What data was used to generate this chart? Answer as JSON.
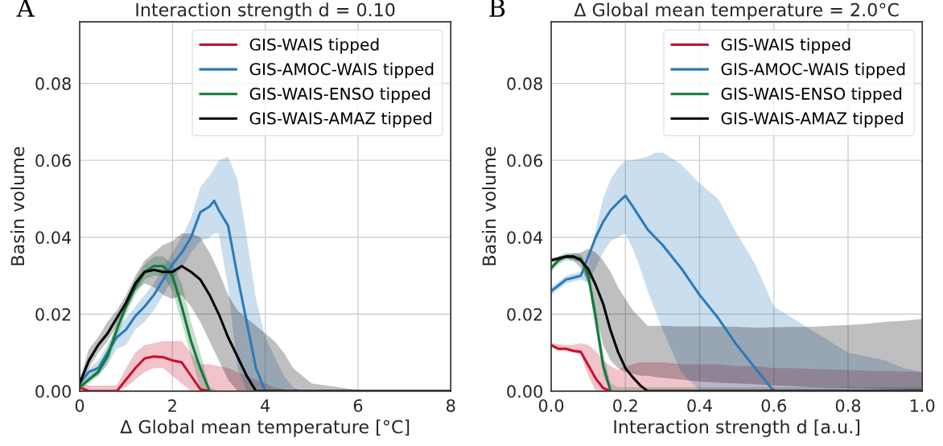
{
  "chart_data": [
    {
      "type": "line",
      "title": "Interaction strength d = 0.10",
      "xlabel": "Δ Global mean temperature [°C]",
      "ylabel": "Basin volume",
      "annotations": [
        "A"
      ],
      "x": [
        0,
        0.2,
        0.4,
        0.6,
        0.8,
        1.0,
        1.2,
        1.4,
        1.6,
        1.8,
        2.0,
        2.2,
        2.4,
        2.6,
        2.8,
        3.0,
        3.2,
        3.4,
        3.6,
        3.8,
        4.0,
        4.2,
        4.4,
        4.6,
        4.8,
        5.0,
        6,
        8
      ],
      "xlim": [
        0,
        8
      ],
      "xticks": [
        0,
        2,
        4,
        6,
        8
      ],
      "ylim": [
        0,
        0.096
      ],
      "yticks": [
        {
          "value": 0,
          "label": "0.00"
        },
        {
          "value": 0.02,
          "label": "0.02"
        },
        {
          "value": 0.04,
          "label": "0.04"
        },
        {
          "value": 0.06,
          "label": "0.06"
        },
        {
          "value": 0.08,
          "label": "0.08"
        }
      ],
      "grid": true,
      "legend": "top right",
      "series": [
        {
          "name": "GIS-WAIS tipped",
          "color": "#c8102e",
          "values": [
            0.001,
            0,
            0,
            0,
            0,
            0.003,
            0.006,
            0.0085,
            0.009,
            0.0088,
            0.008,
            0.0075,
            0.004,
            0.0005,
            0,
            null,
            null,
            null,
            null,
            null,
            null,
            null,
            null,
            null,
            null,
            null,
            null,
            null
          ],
          "upper": [
            0.002,
            0.0015,
            0.0015,
            0.0015,
            0.0015,
            0.006,
            0.01,
            0.012,
            0.0125,
            0.013,
            0.013,
            0.013,
            0.01,
            0.007,
            0.007,
            0.0065,
            0.006,
            0.005,
            0.004,
            0.003,
            0.002,
            0.001,
            0.0005,
            0,
            0,
            0,
            0,
            0
          ],
          "lower": [
            0,
            0,
            0,
            0,
            0,
            0.001,
            0.003,
            0.005,
            0.006,
            0.006,
            0.004,
            0.002,
            0,
            0,
            0,
            0,
            0,
            0,
            0,
            0,
            0,
            0,
            0,
            0,
            0,
            0,
            0,
            0
          ]
        },
        {
          "name": "GIS-AMOC-WAIS tipped",
          "color": "#2b7bba",
          "x": [
            0,
            0.2,
            0.4,
            0.6,
            0.8,
            1.0,
            1.2,
            1.4,
            1.6,
            1.8,
            2.0,
            2.2,
            2.4,
            2.6,
            2.8,
            2.9,
            3.0,
            3.2,
            3.4,
            3.6,
            3.8,
            4.0,
            4.2,
            4.4,
            4.6,
            4.8,
            5.0,
            6,
            8
          ],
          "values": [
            0.002,
            0.005,
            0.006,
            0.01,
            0.014,
            0.016,
            0.0195,
            0.022,
            0.025,
            0.029,
            0.033,
            0.036,
            0.04,
            0.0465,
            0.048,
            0.0495,
            0.047,
            0.043,
            0.03,
            0.018,
            0.006,
            0,
            null,
            null,
            null,
            null,
            null,
            null,
            null
          ],
          "upper": [
            0.003,
            0.006,
            0.008,
            0.012,
            0.016,
            0.019,
            0.022,
            0.025,
            0.028,
            0.032,
            0.036,
            0.04,
            0.045,
            0.053,
            0.056,
            0.058,
            0.06,
            0.061,
            0.055,
            0.04,
            0.024,
            0.014,
            0.009,
            0.004,
            0.001,
            0,
            0,
            0,
            0
          ],
          "lower": [
            0.001,
            0.003,
            0.004,
            0.007,
            0.011,
            0.012,
            0.016,
            0.018,
            0.021,
            0.025,
            0.029,
            0.032,
            0.036,
            0.039,
            0.04,
            0.041,
            0.041,
            0.027,
            0.006,
            0,
            0,
            0,
            0,
            0,
            0,
            0,
            0,
            0,
            0
          ]
        },
        {
          "name": "GIS-WAIS-ENSO tipped",
          "color": "#137a3a",
          "values": [
            0.001,
            0.003,
            0.005,
            0.009,
            0.016,
            0.022,
            0.027,
            0.031,
            0.0325,
            0.0325,
            0.03,
            0.022,
            0.013,
            0.006,
            0,
            null,
            null,
            null,
            null,
            null,
            null,
            null,
            null,
            null,
            null,
            null,
            null,
            null
          ],
          "upper": [
            0.002,
            0.004,
            0.006,
            0.011,
            0.018,
            0.024,
            0.029,
            0.033,
            0.035,
            0.035,
            0.033,
            0.028,
            0.018,
            0.01,
            0.001,
            0,
            0,
            0,
            0,
            0,
            0,
            0,
            0,
            0,
            0,
            0,
            0,
            0
          ],
          "lower": [
            0,
            0.002,
            0.004,
            0.007,
            0.014,
            0.02,
            0.025,
            0.029,
            0.03,
            0.03,
            0.026,
            0.018,
            0.009,
            0.001,
            0,
            0,
            0,
            0,
            0,
            0,
            0,
            0,
            0,
            0,
            0,
            0,
            0,
            0
          ]
        },
        {
          "name": "GIS-WAIS-AMAZ tipped",
          "color": "#000000",
          "values": [
            0.002,
            0.008,
            0.012,
            0.015,
            0.019,
            0.023,
            0.028,
            0.031,
            0.0315,
            0.031,
            0.031,
            0.0325,
            0.031,
            0.029,
            0.025,
            0.02,
            0.014,
            0.009,
            0.004,
            0,
            0,
            0,
            0,
            0,
            0,
            0,
            0,
            0
          ],
          "upper": [
            0.003,
            0.011,
            0.014,
            0.018,
            0.021,
            0.025,
            0.03,
            0.034,
            0.036,
            0.038,
            0.039,
            0.041,
            0.041,
            0.04,
            0.036,
            0.031,
            0.025,
            0.021,
            0.019,
            0.017,
            0.015,
            0.013,
            0.01,
            0.006,
            0.004,
            0.002,
            0.0003,
            0
          ],
          "lower": [
            0.001,
            0.006,
            0.01,
            0.013,
            0.017,
            0.021,
            0.026,
            0.028,
            0.027,
            0.025,
            0.024,
            0.025,
            0.022,
            0.018,
            0.013,
            0.008,
            0.003,
            0,
            0,
            0,
            0,
            0,
            0,
            0,
            0,
            0,
            0,
            0
          ]
        }
      ]
    },
    {
      "type": "line",
      "title": "Δ Global mean temperature = 2.0°C",
      "xlabel": "Interaction strength d [a.u.]",
      "ylabel": "Basin volume",
      "annotations": [
        "B"
      ],
      "x": [
        0,
        0.02,
        0.04,
        0.06,
        0.08,
        0.1,
        0.12,
        0.14,
        0.16,
        0.18,
        0.2,
        0.22,
        0.24,
        0.26,
        0.28,
        0.3,
        0.35,
        0.4,
        0.45,
        0.5,
        0.55,
        0.6,
        0.65,
        0.7,
        0.75,
        0.8,
        0.85,
        0.9,
        0.95,
        1.0
      ],
      "xlim": [
        0,
        1
      ],
      "xticks": [
        {
          "value": 0,
          "label": "0.0"
        },
        {
          "value": 0.2,
          "label": "0.2"
        },
        {
          "value": 0.4,
          "label": "0.4"
        },
        {
          "value": 0.6,
          "label": "0.6"
        },
        {
          "value": 0.8,
          "label": "0.8"
        },
        {
          "value": 1.0,
          "label": "1.0"
        }
      ],
      "ylim": [
        0,
        0.096
      ],
      "yticks": [
        {
          "value": 0,
          "label": "0.00"
        },
        {
          "value": 0.02,
          "label": "0.02"
        },
        {
          "value": 0.04,
          "label": "0.04"
        },
        {
          "value": 0.06,
          "label": "0.06"
        },
        {
          "value": 0.08,
          "label": "0.08"
        }
      ],
      "grid": true,
      "legend": "top right",
      "series": [
        {
          "name": "GIS-WAIS tipped",
          "color": "#c8102e",
          "values": [
            0.012,
            0.011,
            0.011,
            0.0105,
            0.0102,
            0.0067,
            0.0033,
            0.0008,
            0,
            null,
            null,
            null,
            null,
            null,
            null,
            null,
            null,
            null,
            null,
            null,
            null,
            null,
            null,
            null,
            null,
            null,
            null,
            null,
            null,
            null
          ],
          "upper": [
            0.0125,
            0.0122,
            0.012,
            0.012,
            0.0125,
            0.012,
            0.0105,
            0.008,
            0.0065,
            0.0055,
            0.0065,
            0.007,
            0.0075,
            0.0075,
            0.0075,
            0.0075,
            0.007,
            0.007,
            0.007,
            0.0065,
            0.0065,
            0.006,
            0.006,
            0.0058,
            0.0056,
            0.0055,
            0.0053,
            0.0052,
            0.0051,
            0.005
          ],
          "lower": [
            0.0115,
            0.0105,
            0.0105,
            0.01,
            0.0095,
            0.004,
            0,
            0,
            0,
            0,
            0,
            0,
            0,
            0,
            0,
            0,
            0,
            0,
            0,
            0,
            0,
            0,
            0,
            0,
            0,
            0,
            0,
            0,
            0,
            0
          ]
        },
        {
          "name": "GIS-AMOC-WAIS tipped",
          "color": "#2b7bba",
          "values": [
            0.026,
            0.0275,
            0.029,
            0.0295,
            0.03,
            0.035,
            0.04,
            0.044,
            0.047,
            0.049,
            0.0508,
            0.048,
            0.045,
            0.042,
            0.04,
            0.038,
            0.032,
            0.025,
            0.019,
            0.012,
            0.006,
            0,
            null,
            null,
            null,
            null,
            null,
            null,
            null,
            null
          ],
          "upper": [
            0.027,
            0.0285,
            0.03,
            0.0305,
            0.031,
            0.033,
            0.042,
            0.05,
            0.055,
            0.058,
            0.06,
            0.06,
            0.0605,
            0.061,
            0.062,
            0.062,
            0.059,
            0.054,
            0.05,
            0.041,
            0.033,
            0.022,
            0.019,
            0.016,
            0.013,
            0.01,
            0.009,
            0.008,
            0.006,
            0.005
          ],
          "lower": [
            0.025,
            0.0265,
            0.028,
            0.0285,
            0.029,
            0.028,
            0.032,
            0.036,
            0.039,
            0.04,
            0.041,
            0.037,
            0.032,
            0.026,
            0.021,
            0.016,
            0.005,
            0,
            0,
            0,
            0,
            0,
            0,
            0,
            0,
            0,
            0,
            0,
            0,
            0
          ]
        },
        {
          "name": "GIS-WAIS-ENSO tipped",
          "color": "#137a3a",
          "values": [
            0.032,
            0.034,
            0.035,
            0.0348,
            0.0345,
            0.03,
            0.019,
            0.0067,
            0,
            null,
            null,
            null,
            null,
            null,
            null,
            null,
            null,
            null,
            null,
            null,
            null,
            null,
            null,
            null,
            null,
            null,
            null,
            null,
            null,
            null
          ],
          "upper": [
            0.033,
            0.035,
            0.036,
            0.0358,
            0.0355,
            0.032,
            0.022,
            0.01,
            0.002,
            0.001,
            0.001,
            0.001,
            0.001,
            0.001,
            0.001,
            0.001,
            0.001,
            0.001,
            0.001,
            0.001,
            0.001,
            0.001,
            0.001,
            0.001,
            0.001,
            0.001,
            0.001,
            0.001,
            0.001,
            0.001
          ],
          "lower": [
            0.031,
            0.033,
            0.034,
            0.0338,
            0.0335,
            0.028,
            0.016,
            0.004,
            0,
            0,
            0,
            0,
            0,
            0,
            0,
            0,
            0,
            0,
            0,
            0,
            0,
            0,
            0,
            0,
            0,
            0,
            0,
            0,
            0,
            0
          ]
        },
        {
          "name": "GIS-WAIS-AMAZ tipped",
          "color": "#000000",
          "values": [
            0.034,
            0.0345,
            0.035,
            0.035,
            0.034,
            0.0317,
            0.0276,
            0.0227,
            0.0158,
            0.0102,
            0.006,
            0.0036,
            0.0015,
            0,
            0,
            0,
            0,
            0,
            0,
            0,
            0,
            0,
            0,
            0,
            0,
            0,
            0,
            0,
            0,
            0
          ],
          "upper": [
            0.0345,
            0.035,
            0.0355,
            0.0358,
            0.036,
            0.037,
            0.036,
            0.034,
            0.031,
            0.027,
            0.024,
            0.021,
            0.019,
            0.017,
            0.017,
            0.017,
            0.0168,
            0.0168,
            0.0168,
            0.0167,
            0.0165,
            0.0166,
            0.0167,
            0.0167,
            0.017,
            0.0172,
            0.0175,
            0.018,
            0.0183,
            0.0188
          ],
          "lower": [
            0.0335,
            0.034,
            0.0345,
            0.034,
            0.032,
            0.028,
            0.02,
            0.012,
            0.008,
            0.006,
            0.005,
            0.0045,
            0.004,
            0.004,
            0.0037,
            0.0035,
            0.003,
            0.0025,
            0.0022,
            0.002,
            0.0018,
            0.0015,
            0.0013,
            0.001,
            0.0009,
            0.0008,
            0.0007,
            0.0005,
            0.0004,
            0.0003
          ]
        }
      ]
    }
  ]
}
